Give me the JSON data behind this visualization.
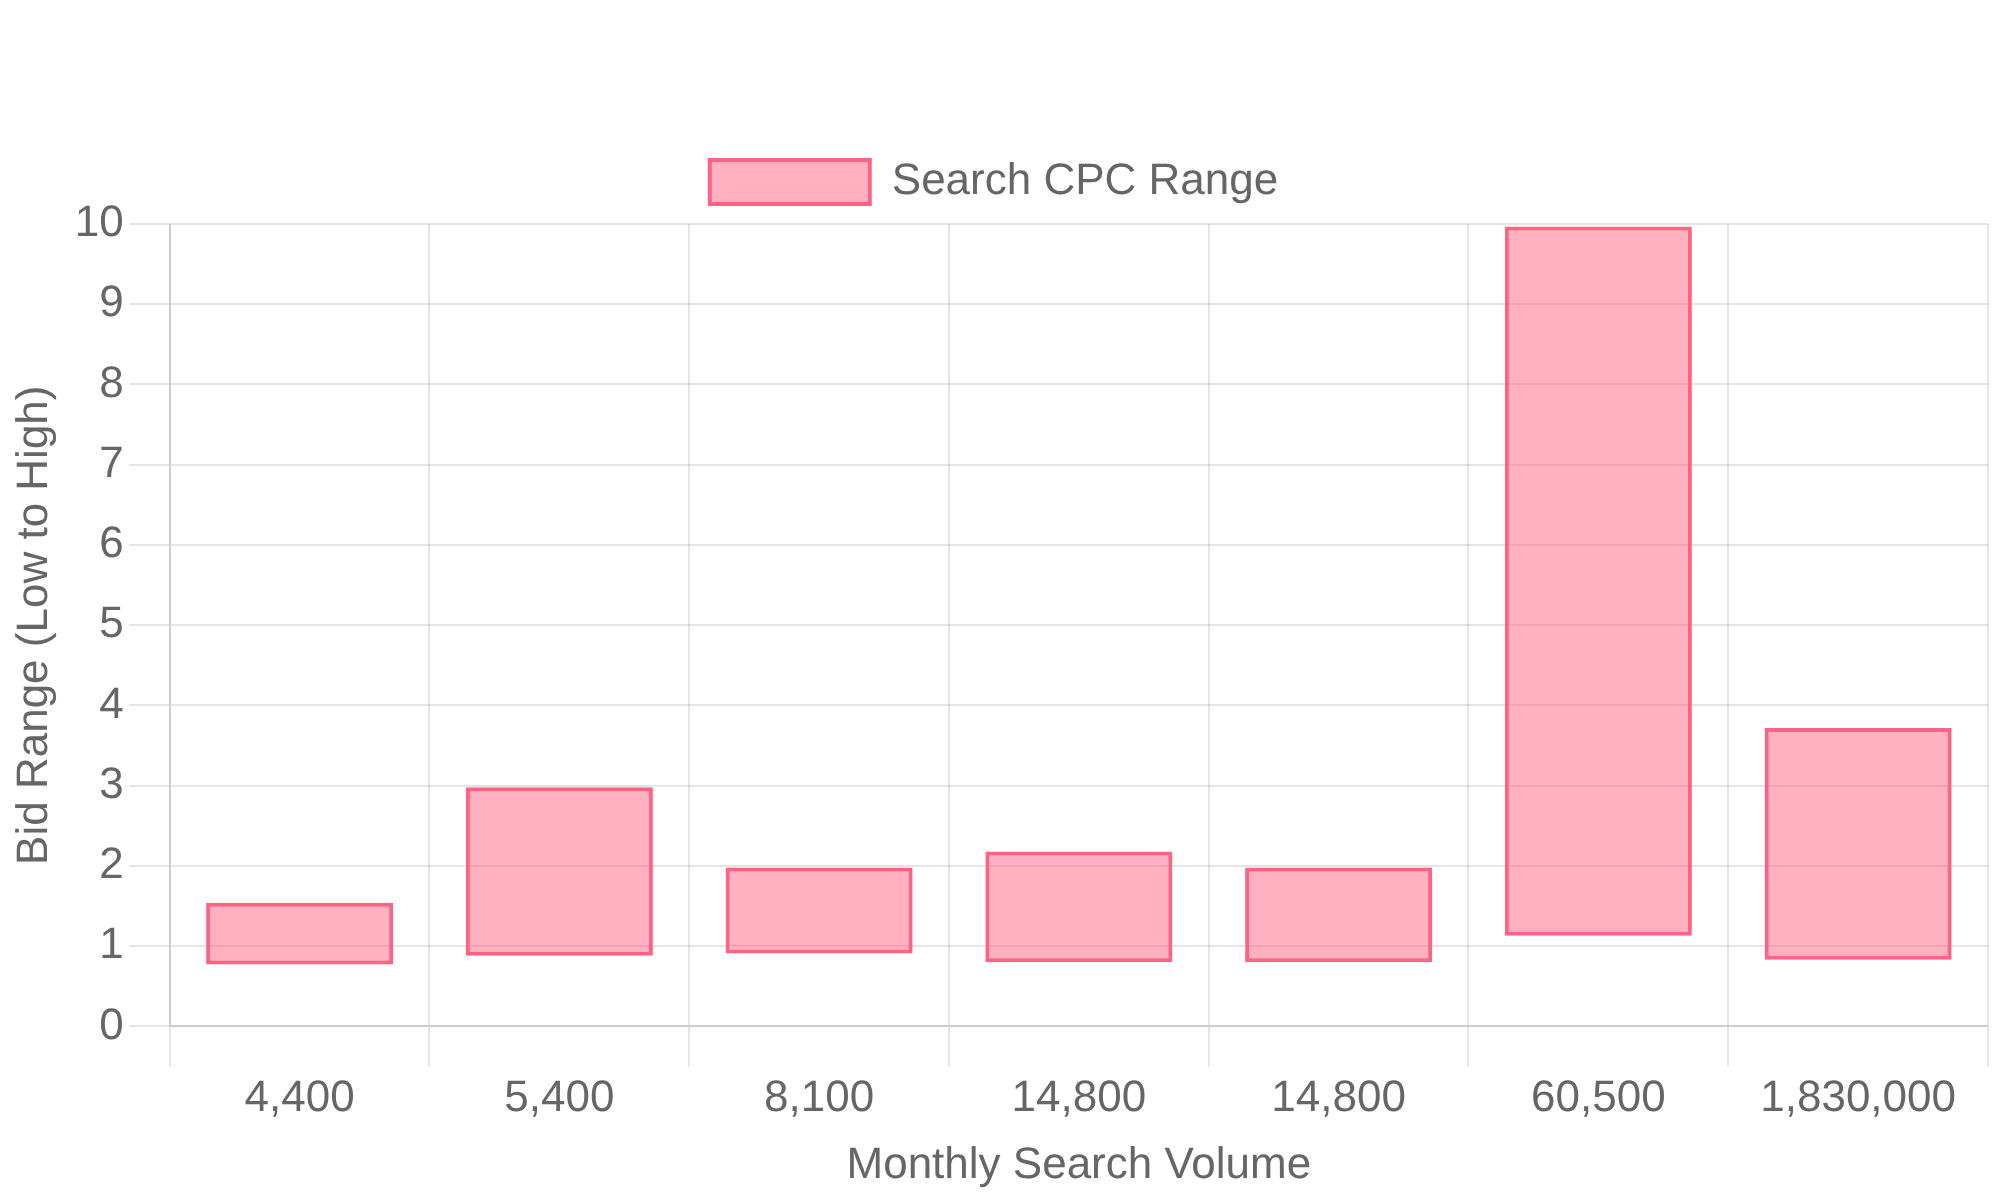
{
  "chart_data": {
    "type": "bar",
    "xlabel": "Monthly Search Volume",
    "ylabel": "Bid Range (Low to High)",
    "categories": [
      "4,400",
      "5,400",
      "8,100",
      "14,800",
      "14,800",
      "60,500",
      "1,830,000"
    ],
    "series": [
      {
        "name": "Search CPC Range",
        "color": "#ff6384",
        "values": [
          0.77,
          2.1,
          1.07,
          1.38,
          1.18,
          8.84,
          2.89
        ],
        "base": [
          0.77,
          0.88,
          0.91,
          0.8,
          0.8,
          1.13,
          0.83
        ]
      }
    ],
    "ylim": [
      0,
      10
    ],
    "yticks": [
      0,
      1,
      2,
      3,
      4,
      5,
      6,
      7,
      8,
      9,
      10
    ],
    "grid": true,
    "legend": "top"
  }
}
